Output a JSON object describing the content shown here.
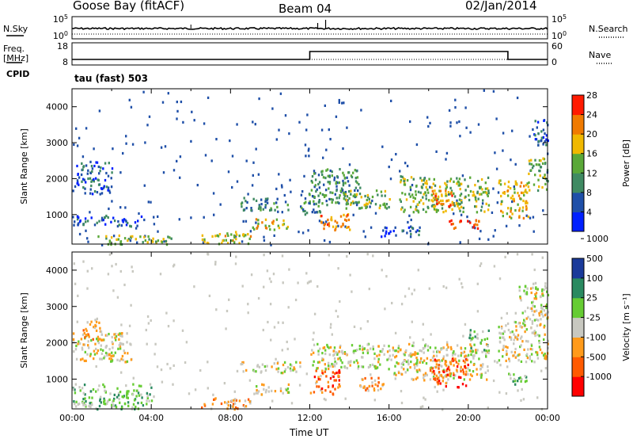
{
  "header": {
    "station": "Goose Bay (fitACF)",
    "beam": "Beam 04",
    "date": "02/Jan/2014"
  },
  "left_labels": {
    "nsky": "N.Sky",
    "freq_line1": "Freq.",
    "freq_line2": "[MHz]",
    "cpid": "CPID"
  },
  "right_labels": {
    "nsearch": "N.Search",
    "nave": "Nave"
  },
  "cpid_value": "tau (fast) 503",
  "xlabel": "Time UT",
  "colors": {
    "power": [
      "#0020ff",
      "#1f4fa8",
      "#3f8a62",
      "#5aa838",
      "#f0b800",
      "#f07a00",
      "#ff1a00"
    ],
    "velocity": [
      "#ff0000",
      "#ff5a00",
      "#ff9a1a",
      "#c8c8c0",
      "#66cc33",
      "#2a8a60",
      "#1a3a9a"
    ]
  },
  "chart_data": [
    {
      "type": "line",
      "title": "N.Sky / N.Search",
      "y_tick_labels": [
        "10^5",
        "10^0"
      ],
      "right_tick_labels": [
        "10^5",
        "10^0"
      ],
      "x_range_hours": [
        0,
        24
      ],
      "series": [
        {
          "name": "N.Sky",
          "style": "solid",
          "level": "near 10^1–10^2, roughly constant"
        },
        {
          "name": "N.Search",
          "style": "dotted",
          "level": "near 10^0–10^1"
        }
      ]
    },
    {
      "type": "line",
      "title": "Freq. / Nave",
      "y_tick_labels": [
        "18",
        "8"
      ],
      "right_tick_labels": [
        "60",
        "0"
      ],
      "x_range_hours": [
        0,
        24
      ],
      "series": [
        {
          "name": "Freq.",
          "style": "solid",
          "segments": [
            {
              "x_start": 0,
              "x_end": 12,
              "value_mhz": 10.5
            },
            {
              "x_start": 12,
              "x_end": 22,
              "value_mhz": 15.5
            },
            {
              "x_start": 22,
              "x_end": 24,
              "value_mhz": 10.5
            }
          ]
        },
        {
          "name": "Nave",
          "style": "dotted",
          "value": 10
        }
      ]
    },
    {
      "type": "heatmap",
      "ylabel": "Slant Range [km]",
      "y_ticks": [
        1000,
        2000,
        3000,
        4000
      ],
      "y_range": [
        180,
        4500
      ],
      "x_range_hours": [
        0,
        24
      ],
      "colorbar": {
        "label": "Power [dB]",
        "ticks": [
          4,
          8,
          12,
          16,
          20,
          24,
          28
        ],
        "range": [
          0,
          30
        ]
      },
      "blobs": [
        {
          "h0": 0.2,
          "h1": 2.0,
          "r0": 1600,
          "r1": 2500,
          "level": 1
        },
        {
          "h0": 0.0,
          "h1": 3.5,
          "r0": 700,
          "r1": 1000,
          "level": 1
        },
        {
          "h0": 1.0,
          "h1": 5.0,
          "r0": 200,
          "r1": 450,
          "level": 3
        },
        {
          "h0": 6.5,
          "h1": 9.0,
          "r0": 200,
          "r1": 550,
          "level": 4
        },
        {
          "h0": 8.5,
          "h1": 11.0,
          "r0": 1150,
          "r1": 1500,
          "level": 2
        },
        {
          "h0": 9.0,
          "h1": 11.0,
          "r0": 600,
          "r1": 900,
          "level": 4
        },
        {
          "h0": 12.0,
          "h1": 14.5,
          "r0": 1300,
          "r1": 2300,
          "level": 2
        },
        {
          "h0": 12.5,
          "h1": 14.0,
          "r0": 600,
          "r1": 1100,
          "level": 5
        },
        {
          "h0": 13.5,
          "h1": 16.0,
          "r0": 1200,
          "r1": 1700,
          "level": 3
        },
        {
          "h0": 15.5,
          "h1": 17.5,
          "r0": 400,
          "r1": 700,
          "level": 1
        },
        {
          "h0": 16.5,
          "h1": 21.0,
          "r0": 1100,
          "r1": 2100,
          "level": 3
        },
        {
          "h0": 18.0,
          "h1": 19.2,
          "r0": 1200,
          "r1": 1700,
          "level": 5
        },
        {
          "h0": 19.0,
          "h1": 20.5,
          "r0": 600,
          "r1": 900,
          "level": 6
        },
        {
          "h0": 21.5,
          "h1": 23.0,
          "r0": 900,
          "r1": 2000,
          "level": 4
        },
        {
          "h0": 23.0,
          "h1": 24.0,
          "r0": 1700,
          "r1": 2600,
          "level": 3
        },
        {
          "h0": 23.2,
          "h1": 24.0,
          "r0": 2800,
          "r1": 3700,
          "level": 1
        },
        {
          "h0": 11.5,
          "h1": 12.5,
          "r0": 1000,
          "r1": 1700,
          "level": 2
        }
      ]
    },
    {
      "type": "heatmap",
      "ylabel": "Slant Range [km]",
      "y_ticks": [
        1000,
        2000,
        3000,
        4000
      ],
      "y_range": [
        180,
        4500
      ],
      "x_range_hours": [
        0,
        24
      ],
      "x_tick_labels": [
        "00:00",
        "04:00",
        "08:00",
        "12:00",
        "16:00",
        "20:00",
        "00:00"
      ],
      "colorbar": {
        "label": "Velocity [m s⁻¹]",
        "ticks": [
          "-1000",
          "-500",
          "-100",
          "-25",
          "25",
          "100",
          "500",
          "1000"
        ]
      },
      "blobs": [
        {
          "h0": 0.0,
          "h1": 3.0,
          "r0": 1500,
          "r1": 2300,
          "level": 3
        },
        {
          "h0": 0.5,
          "h1": 1.5,
          "r0": 2100,
          "r1": 2700,
          "level": 2
        },
        {
          "h0": 0.0,
          "h1": 4.0,
          "r0": 200,
          "r1": 900,
          "level": 4
        },
        {
          "h0": 6.5,
          "h1": 9.0,
          "r0": 200,
          "r1": 500,
          "level": 2
        },
        {
          "h0": 8.5,
          "h1": 11.5,
          "r0": 1200,
          "r1": 1500,
          "level": 3
        },
        {
          "h0": 9.0,
          "h1": 11.0,
          "r0": 600,
          "r1": 900,
          "level": 3
        },
        {
          "h0": 12.0,
          "h1": 13.5,
          "r0": 600,
          "r1": 1300,
          "level": 1
        },
        {
          "h0": 12.0,
          "h1": 16.0,
          "r0": 1300,
          "r1": 2000,
          "level": 3
        },
        {
          "h0": 14.5,
          "h1": 16.0,
          "r0": 700,
          "r1": 1100,
          "level": 2
        },
        {
          "h0": 16.0,
          "h1": 21.0,
          "r0": 1000,
          "r1": 2000,
          "level": 3
        },
        {
          "h0": 18.0,
          "h1": 20.0,
          "r0": 800,
          "r1": 1600,
          "level": 1
        },
        {
          "h0": 20.0,
          "h1": 21.0,
          "r0": 1700,
          "r1": 2400,
          "level": 4
        },
        {
          "h0": 21.5,
          "h1": 24.0,
          "r0": 1500,
          "r1": 2600,
          "level": 3
        },
        {
          "h0": 22.5,
          "h1": 24.0,
          "r0": 2600,
          "r1": 3700,
          "level": 3
        },
        {
          "h0": 22.0,
          "h1": 23.0,
          "r0": 800,
          "r1": 1200,
          "level": 4
        }
      ]
    }
  ]
}
